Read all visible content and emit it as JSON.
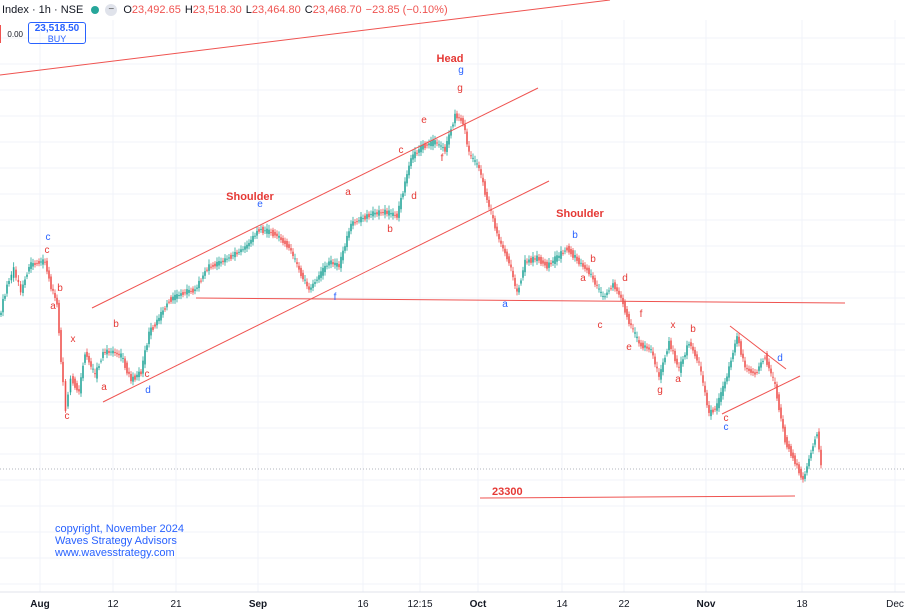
{
  "header": {
    "title": "Index · 1h · NSE",
    "open_label": "O",
    "open": "23,492.65",
    "high_label": "H",
    "high": "23,518.30",
    "low_label": "L",
    "low": "23,464.80",
    "close_label": "C",
    "close": "23,468.70",
    "change": "−23.85 (−0.10%)"
  },
  "order": {
    "sell_value": "0.00",
    "buy_price": "23,518.50",
    "buy_label": "BUY"
  },
  "copyright": [
    "copyright, November 2024",
    "Waves Strategy Advisors",
    "www.wavesstrategy.com"
  ],
  "colors": {
    "up": "#26a69a",
    "down": "#ef5350",
    "red_label": "#e53935",
    "blue_label": "#2962ff",
    "line": "#ef5350",
    "axis_text": "#131722"
  },
  "chart_data": {
    "type": "candlestick",
    "x_axis_ticks": [
      "Aug",
      "12",
      "21",
      "Sep",
      "16",
      "12:15",
      "Oct",
      "14",
      "22",
      "Nov",
      "18",
      "Dec"
    ],
    "price_path_approx": [
      {
        "t": "late Jul",
        "price": 24700
      },
      {
        "t": "early Aug",
        "price": 24850
      },
      {
        "t": "Aug low",
        "price": 23900
      },
      {
        "t": "mid Aug",
        "price": 24300
      },
      {
        "t": "late Aug (Shoulder)",
        "price": 25200
      },
      {
        "t": "early Sep",
        "price": 24800
      },
      {
        "t": "late Sep (Head)",
        "price": 26200
      },
      {
        "t": "early Oct",
        "price": 24700
      },
      {
        "t": "mid Oct (Shoulder)",
        "price": 25200
      },
      {
        "t": "early Nov",
        "price": 24100
      },
      {
        "t": "mid Nov low",
        "price": 23300
      },
      {
        "t": "late Nov",
        "price": 23470
      }
    ],
    "pattern_labels": [
      "Head",
      "Shoulder",
      "Shoulder"
    ],
    "level_label": "23300",
    "wave_labels": [
      {
        "text": "c",
        "color": "blue"
      },
      {
        "text": "c",
        "color": "red"
      },
      {
        "text": "b",
        "color": "red"
      },
      {
        "text": "a",
        "color": "red"
      },
      {
        "text": "x",
        "color": "red"
      },
      {
        "text": "b",
        "color": "red"
      },
      {
        "text": "a",
        "color": "red"
      },
      {
        "text": "c",
        "color": "red"
      },
      {
        "text": "c",
        "color": "red"
      },
      {
        "text": "d",
        "color": "blue"
      },
      {
        "text": "e",
        "color": "blue"
      },
      {
        "text": "a",
        "color": "red"
      },
      {
        "text": "b",
        "color": "red"
      },
      {
        "text": "d",
        "color": "red"
      },
      {
        "text": "c",
        "color": "red"
      },
      {
        "text": "e",
        "color": "red"
      },
      {
        "text": "f",
        "color": "red"
      },
      {
        "text": "g",
        "color": "red"
      },
      {
        "text": "g",
        "color": "blue"
      },
      {
        "text": "f",
        "color": "blue"
      },
      {
        "text": "a",
        "color": "blue"
      },
      {
        "text": "b",
        "color": "blue"
      },
      {
        "text": "b",
        "color": "red"
      },
      {
        "text": "a",
        "color": "red"
      },
      {
        "text": "d",
        "color": "red"
      },
      {
        "text": "c",
        "color": "red"
      },
      {
        "text": "f",
        "color": "red"
      },
      {
        "text": "e",
        "color": "red"
      },
      {
        "text": "g",
        "color": "red"
      },
      {
        "text": "x",
        "color": "red"
      },
      {
        "text": "a",
        "color": "red"
      },
      {
        "text": "b",
        "color": "red"
      },
      {
        "text": "c",
        "color": "red"
      },
      {
        "text": "c",
        "color": "blue"
      },
      {
        "text": "d",
        "color": "blue"
      }
    ]
  }
}
